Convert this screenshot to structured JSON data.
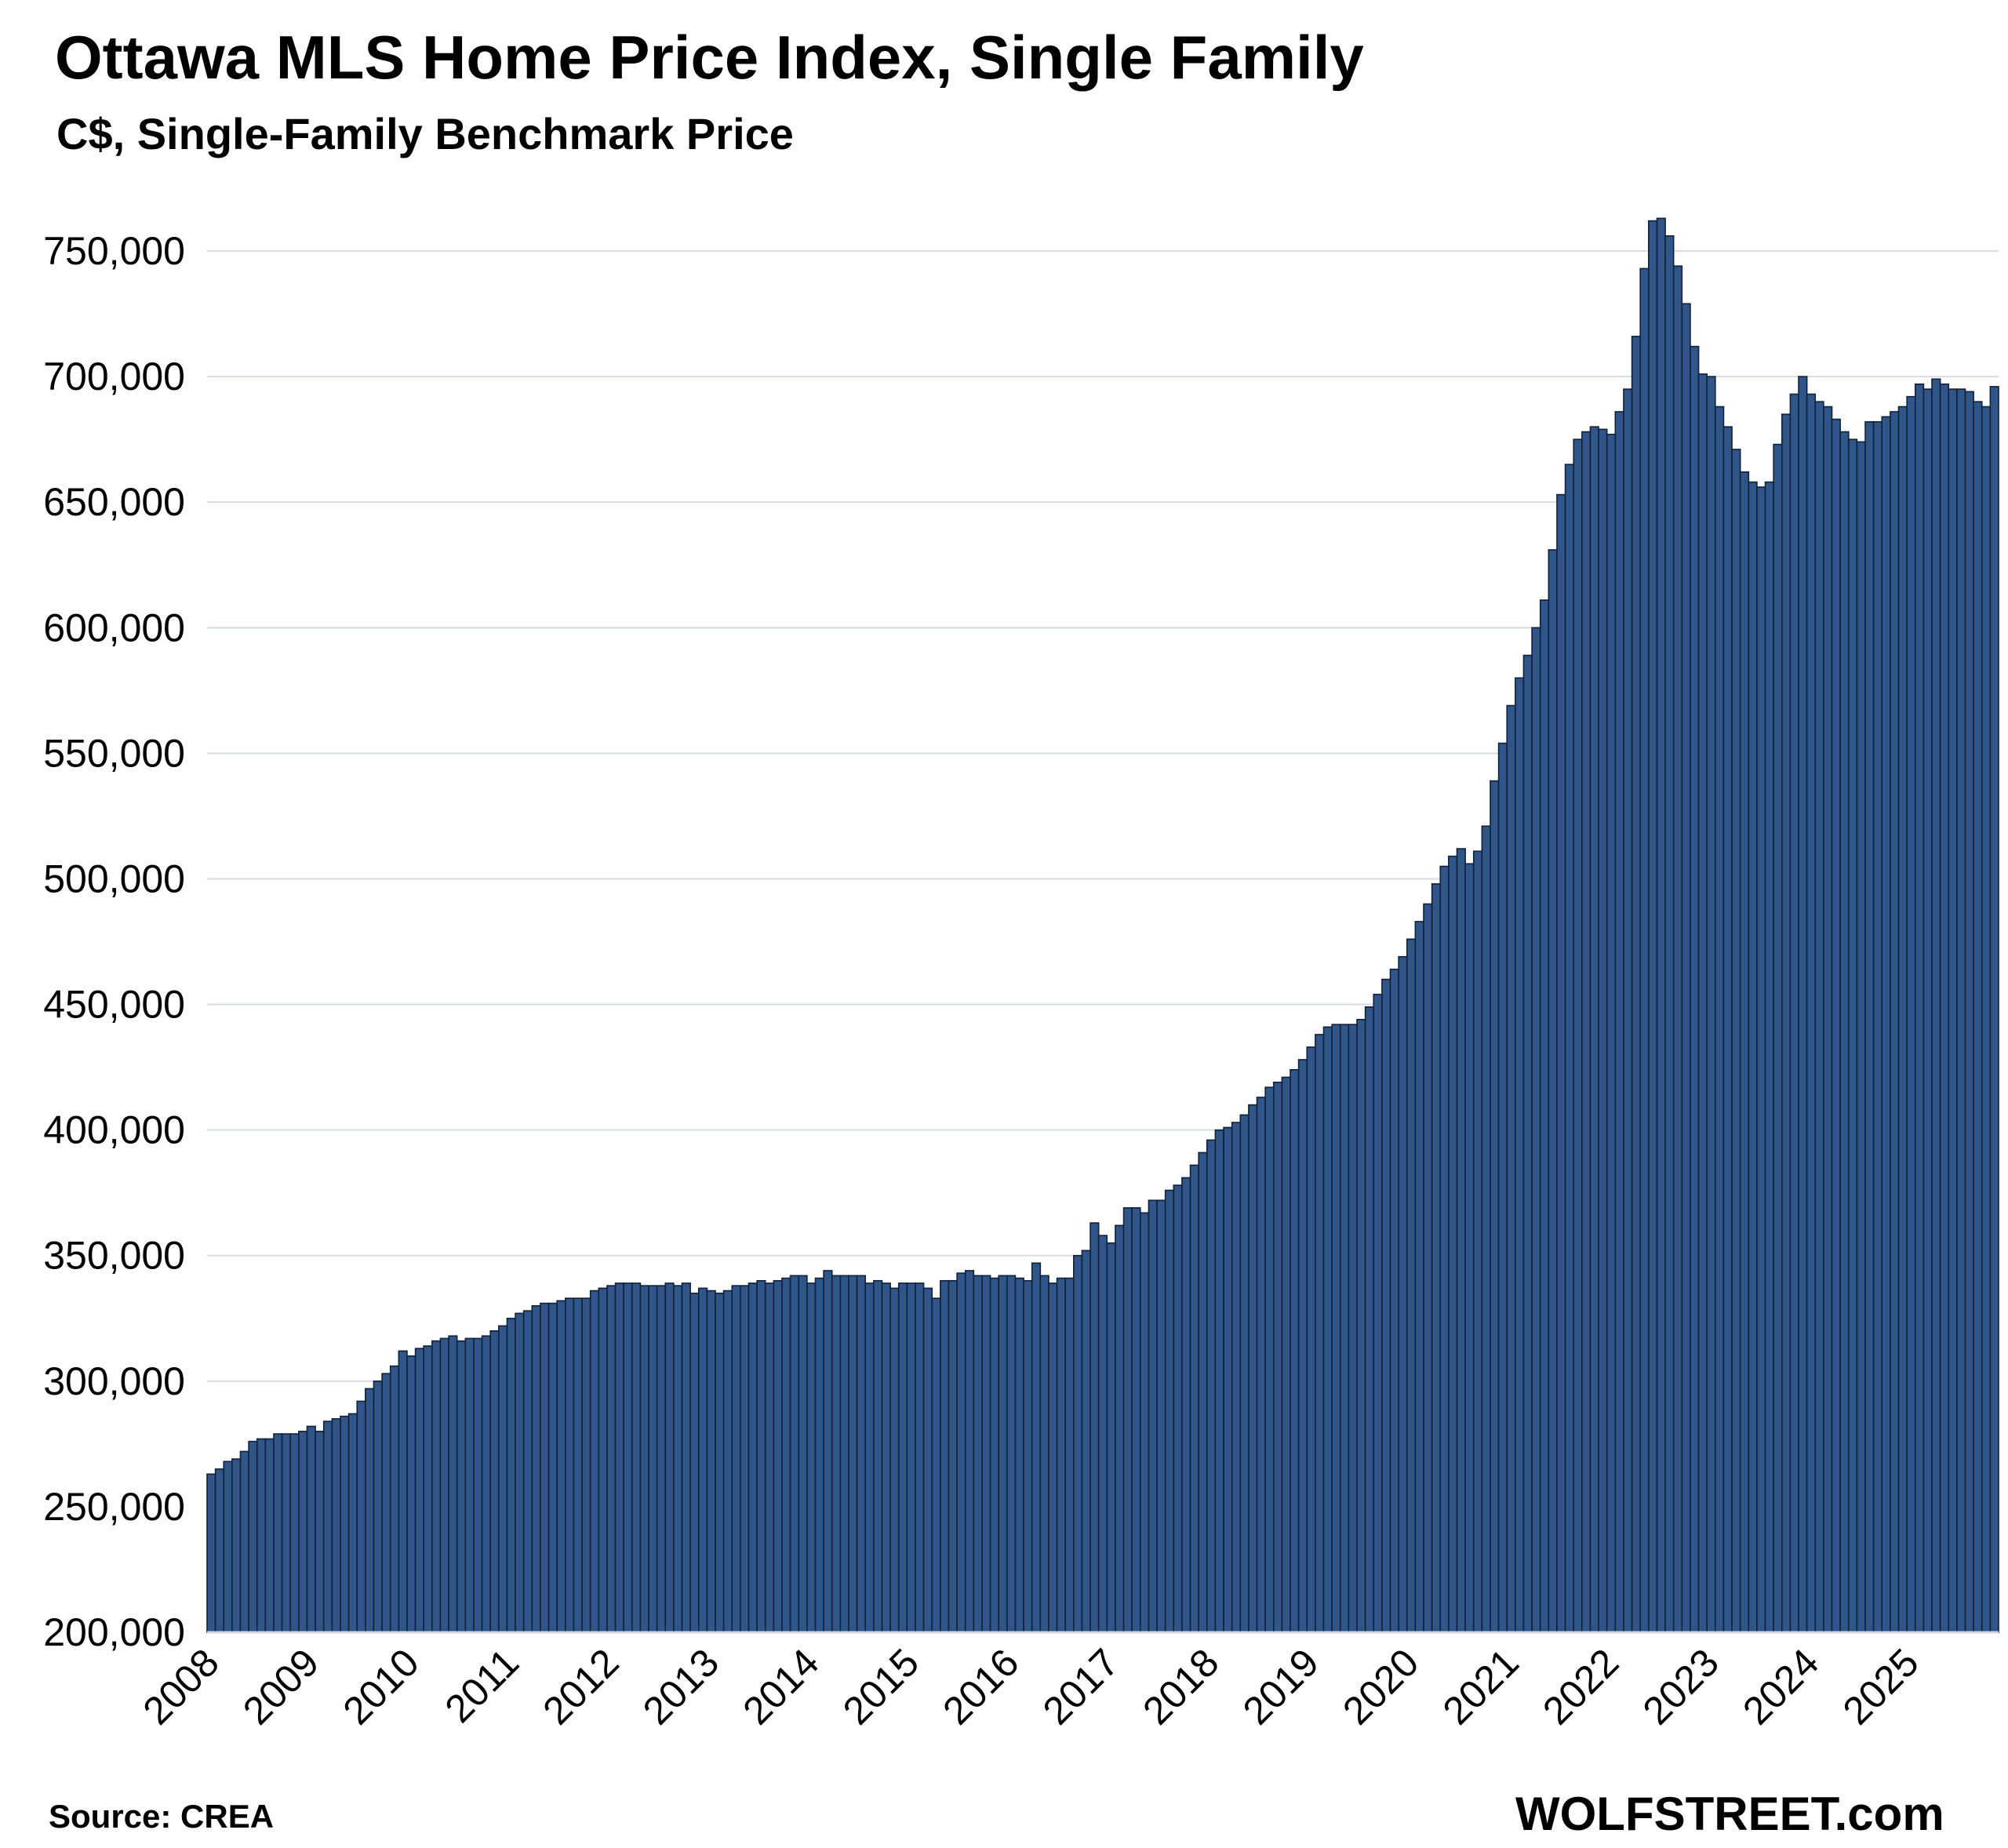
{
  "header": {
    "title": "Ottawa MLS Home Price Index, Single Family",
    "subtitle": "C$, Single-Family Benchmark Price"
  },
  "footer": {
    "source": "Source: CREA",
    "brand": "WOLFSTREET.com"
  },
  "colors": {
    "bar": "#2f5589",
    "bar_edge": "#10213a",
    "grid": "#d6dce6"
  },
  "chart_data": {
    "type": "bar",
    "title": "Ottawa MLS Home Price Index, Single Family",
    "subtitle": "C$, Single-Family Benchmark Price",
    "xlabel": "",
    "ylabel": "",
    "ylim": [
      200000,
      770000
    ],
    "yticks": [
      200000,
      250000,
      300000,
      350000,
      400000,
      450000,
      500000,
      550000,
      600000,
      650000,
      700000,
      750000
    ],
    "ytick_labels": [
      "200,000",
      "250,000",
      "300,000",
      "350,000",
      "400,000",
      "450,000",
      "500,000",
      "550,000",
      "600,000",
      "650,000",
      "700,000",
      "750,000"
    ],
    "xtick_labels": [
      "2008",
      "2009",
      "2010",
      "2011",
      "2012",
      "2013",
      "2014",
      "2015",
      "2016",
      "2017",
      "2018",
      "2019",
      "2020",
      "2021",
      "2022",
      "2023",
      "2024",
      "2025"
    ],
    "frequency": "monthly",
    "start": "2008-01",
    "grid": true,
    "legend": "none",
    "series": [
      {
        "values": [
          263000,
          265000,
          268000,
          269000,
          272000,
          276000,
          277000,
          277000,
          279000,
          279000,
          279000,
          280000,
          282000,
          280000,
          284000,
          285000,
          286000,
          287000,
          292000,
          297000,
          300000,
          303000,
          306000,
          312000,
          310000,
          313000,
          314000,
          316000,
          317000,
          318000,
          316000,
          317000,
          317000,
          318000,
          320000,
          322000,
          325000,
          327000,
          328000,
          330000,
          331000,
          331000,
          332000,
          333000,
          333000,
          333000,
          336000,
          337000,
          338000,
          339000,
          339000,
          339000,
          338000,
          338000,
          338000,
          339000,
          338000,
          339000,
          335000,
          337000,
          336000,
          335000,
          336000,
          338000,
          338000,
          339000,
          340000,
          339000,
          340000,
          341000,
          342000,
          342000,
          339000,
          341000,
          344000,
          342000,
          342000,
          342000,
          342000,
          339000,
          340000,
          339000,
          337000,
          339000,
          339000,
          339000,
          337000,
          333000,
          340000,
          340000,
          343000,
          344000,
          342000,
          342000,
          341000,
          342000,
          342000,
          341000,
          340000,
          347000,
          342000,
          339000,
          341000,
          341000,
          350000,
          352000,
          363000,
          358000,
          355000,
          362000,
          369000,
          369000,
          367000,
          372000,
          372000,
          376000,
          378000,
          381000,
          386000,
          391000,
          396000,
          400000,
          401000,
          403000,
          406000,
          410000,
          413000,
          417000,
          419000,
          421000,
          424000,
          428000,
          433000,
          438000,
          441000,
          442000,
          442000,
          442000,
          444000,
          449000,
          454000,
          460000,
          464000,
          469000,
          476000,
          483000,
          490000,
          498000,
          505000,
          509000,
          512000,
          506000,
          511000,
          521000,
          539000,
          554000,
          569000,
          580000,
          589000,
          600000,
          611000,
          631000,
          653000,
          665000,
          675000,
          678000,
          680000,
          679000,
          677000,
          686000,
          695000,
          716000,
          743000,
          762000,
          763000,
          756000,
          744000,
          729000,
          712000,
          701000,
          700000,
          688000,
          680000,
          671000,
          662000,
          658000,
          656000,
          658000,
          673000,
          685000,
          693000,
          700000,
          693000,
          690000,
          688000,
          683000,
          678000,
          675000,
          674000,
          682000,
          682000,
          684000,
          686000,
          688000,
          692000,
          697000,
          695000,
          699000,
          697000,
          695000,
          695000,
          694000,
          690000,
          688000,
          696000
        ]
      }
    ]
  }
}
